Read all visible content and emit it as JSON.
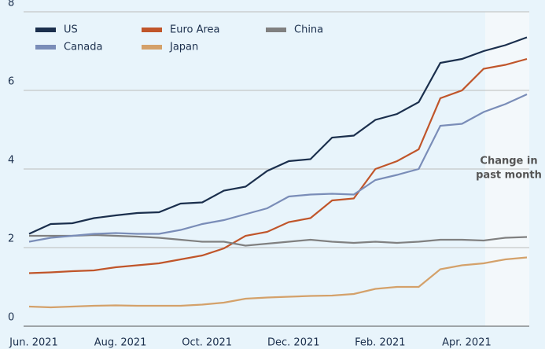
{
  "chart_data": {
    "type": "line",
    "categories": [
      "Jun. 2021",
      null,
      null,
      null,
      "Aug. 2021",
      null,
      null,
      null,
      "Oct. 2021",
      null,
      null,
      null,
      "Dec. 2021",
      null,
      null,
      null,
      "Feb. 2021",
      null,
      null,
      null,
      "Apr. 2021",
      null,
      null,
      null
    ],
    "series": [
      {
        "name": "US",
        "color": "#1b2f4d",
        "values": [
          2.35,
          2.6,
          2.62,
          2.75,
          2.82,
          2.88,
          2.9,
          3.12,
          3.15,
          3.45,
          3.55,
          3.95,
          4.2,
          4.25,
          4.8,
          4.85,
          5.25,
          5.4,
          5.7,
          6.7,
          6.8,
          7.0,
          7.15,
          7.35
        ]
      },
      {
        "name": "Euro Area",
        "color": "#c0552a",
        "values": [
          1.35,
          1.37,
          1.4,
          1.42,
          1.5,
          1.55,
          1.6,
          1.7,
          1.8,
          1.98,
          2.3,
          2.4,
          2.65,
          2.75,
          3.2,
          3.25,
          4.0,
          4.2,
          4.5,
          5.8,
          6.0,
          6.55,
          6.65,
          6.8
        ]
      },
      {
        "name": "China",
        "color": "#808080",
        "values": [
          2.3,
          2.3,
          2.3,
          2.32,
          2.3,
          2.28,
          2.25,
          2.2,
          2.15,
          2.15,
          2.05,
          2.1,
          2.15,
          2.2,
          2.15,
          2.12,
          2.15,
          2.12,
          2.15,
          2.2,
          2.2,
          2.18,
          2.25,
          2.27
        ]
      },
      {
        "name": "Canada",
        "color": "#7a8db8",
        "values": [
          2.15,
          2.25,
          2.3,
          2.35,
          2.37,
          2.35,
          2.35,
          2.45,
          2.6,
          2.7,
          2.85,
          3.0,
          3.3,
          3.35,
          3.37,
          3.35,
          3.72,
          3.85,
          4.0,
          5.1,
          5.15,
          5.45,
          5.65,
          5.9
        ]
      },
      {
        "name": "Japan",
        "color": "#d4a16a",
        "values": [
          0.5,
          0.48,
          0.5,
          0.52,
          0.53,
          0.52,
          0.52,
          0.52,
          0.55,
          0.6,
          0.7,
          0.73,
          0.75,
          0.77,
          0.78,
          0.82,
          0.95,
          1.0,
          1.0,
          1.45,
          1.55,
          1.6,
          1.7,
          1.75
        ]
      }
    ],
    "annotation": [
      "Change in",
      "past month"
    ],
    "ylim": [
      0,
      8
    ],
    "yticks": [
      0,
      2,
      4,
      6,
      8
    ],
    "grid": true
  }
}
